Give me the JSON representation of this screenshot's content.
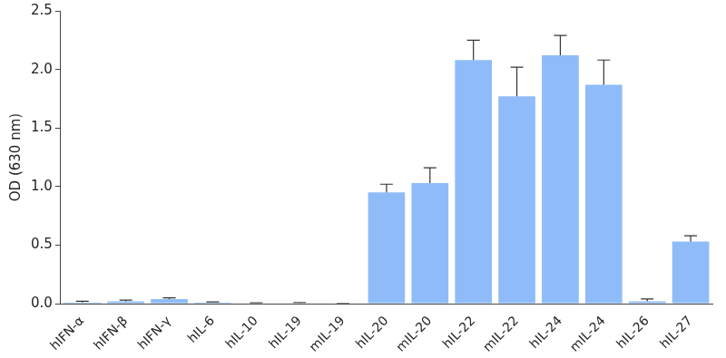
{
  "chart_data": {
    "type": "bar",
    "y_label": "OD (630 nm)",
    "categories": [
      "hIFN-α",
      "hIFN-β",
      "hIFN-γ",
      "hIL-6",
      "hIL-10",
      "hIL-19",
      "mIL-19",
      "hIL-20",
      "mIL-20",
      "hIL-22",
      "mIL-22",
      "hIL-24",
      "mIL-24",
      "hIL-26",
      "hIL-27"
    ],
    "values": [
      0.01,
      0.02,
      0.04,
      0.01,
      0.005,
      0.005,
      0.0,
      0.95,
      1.03,
      2.08,
      1.77,
      2.12,
      1.87,
      0.02,
      0.53
    ],
    "errors": [
      0.01,
      0.01,
      0.01,
      0.005,
      0.003,
      0.005,
      0.0,
      0.07,
      0.13,
      0.17,
      0.25,
      0.17,
      0.21,
      0.02,
      0.05
    ],
    "color": "#8fbcf9",
    "ylim": [
      0,
      2.5
    ],
    "yticks": [
      {
        "value": 0,
        "label": "0.0"
      },
      0.5,
      {
        "value": 1,
        "label": "1.0"
      },
      1.5,
      {
        "value": 2,
        "label": "2.0"
      },
      2.5
    ],
    "grid": false
  }
}
